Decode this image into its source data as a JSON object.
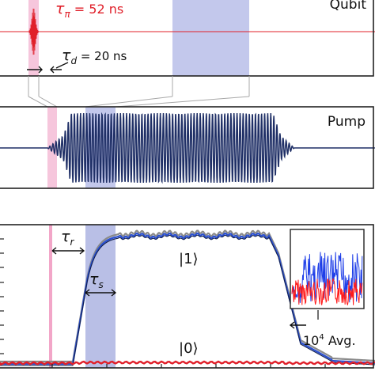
{
  "panels": {
    "qubit": {
      "title": "Qubit",
      "tau_pi_symbol": "τ",
      "tau_pi_sub": "π",
      "tau_pi_value": " = 52 ns",
      "tau_d_symbol": "τ",
      "tau_d_sub": "d",
      "tau_d_value": " = 20 ns"
    },
    "pump": {
      "title": "Pump"
    },
    "readout": {
      "tau_r_symbol": "τ",
      "tau_r_sub": "r",
      "tau_s_symbol": "τ",
      "tau_s_sub": "s",
      "state_one": "|1⟩",
      "state_zero": "|0⟩",
      "avg_base": "10",
      "avg_exp": "4",
      "avg_text": " Avg."
    }
  },
  "colors": {
    "qubit_pulse": "#e0202a",
    "pump_wave": "#1f2f66",
    "shaded_window": "#b9bfe6",
    "marker_pink": "#f2a6c8",
    "trace_one": "#2a4fd0",
    "trace_zero": "#e0202a",
    "trace_gray": "#8a8a8a",
    "inset_blue": "#1e3ee8",
    "inset_red": "#ff1a1a"
  }
}
